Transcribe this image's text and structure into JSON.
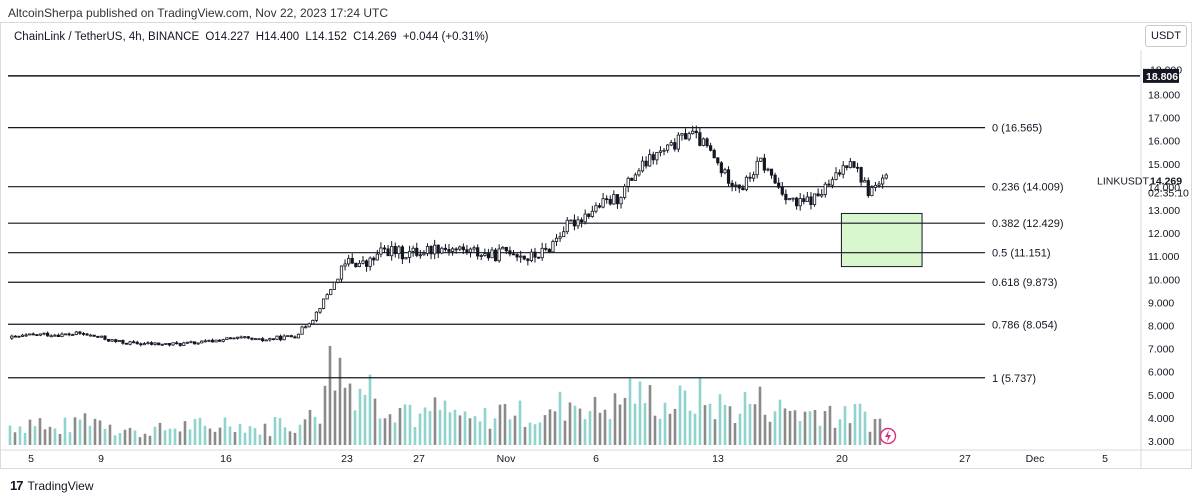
{
  "header": {
    "publisher": "AltcoinSherpa published on TradingView.com, Nov 22, 2023 17:24 UTC"
  },
  "legend": {
    "pair": "ChainLink / TetherUS, 4h, BINANCE",
    "open": "O14.227",
    "high": "H14.400",
    "low": "L14.152",
    "close": "C14.269",
    "change": "+0.044 (+0.31%)"
  },
  "currency_button": "USDT",
  "footer": {
    "logo_mark": "17",
    "brand": "TradingView"
  },
  "colors": {
    "candle": "#131722",
    "volume_up": "#8fd3cc",
    "volume_down": "#8a8a8a",
    "zone_fill": "#d9f7cf",
    "price_tag": "#131722",
    "lightning": "#d8307b"
  },
  "chart_data": {
    "type": "candlestick",
    "y_axis": {
      "ticks": [
        "3.000",
        "4.000",
        "5.000",
        "6.000",
        "7.000",
        "8.000",
        "9.000",
        "10.000",
        "11.000",
        "12.000",
        "13.000",
        "14.000",
        "15.000",
        "16.000",
        "17.000",
        "18.000"
      ],
      "ylim": [
        2.85,
        20.0
      ]
    },
    "x_axis": {
      "ticks": [
        "5",
        "9",
        "16",
        "23",
        "27",
        "Nov",
        "6",
        "13",
        "20",
        "27",
        "Dec",
        "5"
      ]
    },
    "price_series": [
      [
        "Oct 05",
        7.45
      ],
      [
        "Oct 06",
        7.55
      ],
      [
        "Oct 07",
        7.62
      ],
      [
        "Oct 08",
        7.6
      ],
      [
        "Oct 09",
        7.65
      ],
      [
        "Oct 10",
        7.5
      ],
      [
        "Oct 11",
        7.3
      ],
      [
        "Oct 12",
        7.22
      ],
      [
        "Oct 13",
        7.2
      ],
      [
        "Oct 14",
        7.18
      ],
      [
        "Oct 15",
        7.22
      ],
      [
        "Oct 16",
        7.28
      ],
      [
        "Oct 17",
        7.4
      ],
      [
        "Oct 18",
        7.45
      ],
      [
        "Oct 19",
        7.35
      ],
      [
        "Oct 20",
        7.45
      ],
      [
        "Oct 21",
        7.55
      ],
      [
        "Oct 22",
        8.3
      ],
      [
        "Oct 23",
        9.6
      ],
      [
        "Oct 24",
        10.8
      ],
      [
        "Oct 25",
        10.6
      ],
      [
        "Oct 26",
        11.3
      ],
      [
        "Oct 27",
        11.1
      ],
      [
        "Oct 28",
        11.2
      ],
      [
        "Oct 29",
        11.4
      ],
      [
        "Oct 30",
        11.3
      ],
      [
        "Oct 31",
        11.2
      ],
      [
        "Nov 01",
        11.0
      ],
      [
        "Nov 02",
        11.3
      ],
      [
        "Nov 03",
        10.9
      ],
      [
        "Nov 04",
        11.2
      ],
      [
        "Nov 05",
        12.2
      ],
      [
        "Nov 06",
        12.7
      ],
      [
        "Nov 07",
        13.2
      ],
      [
        "Nov 08",
        13.5
      ],
      [
        "Nov 09",
        14.6
      ],
      [
        "Nov 10",
        15.3
      ],
      [
        "Nov 11",
        15.7
      ],
      [
        "Nov 12",
        16.4
      ],
      [
        "Nov 13",
        15.7
      ],
      [
        "Nov 14",
        14.5
      ],
      [
        "Nov 15",
        14.0
      ],
      [
        "Nov 16",
        15.1
      ],
      [
        "Nov 17",
        14.0
      ],
      [
        "Nov 18",
        13.2
      ],
      [
        "Nov 19",
        13.5
      ],
      [
        "Nov 20",
        14.2
      ],
      [
        "Nov 21",
        15.3
      ],
      [
        "Nov 22",
        13.8
      ],
      [
        "Nov 22 17:00",
        14.27
      ]
    ],
    "volume_relative": [
      0.25,
      0.3,
      0.2,
      0.25,
      0.35,
      0.3,
      0.2,
      0.15,
      0.2,
      0.22,
      0.25,
      0.2,
      0.3,
      0.25,
      0.2,
      0.3,
      0.25,
      0.45,
      1.0,
      0.8,
      0.75,
      0.55,
      0.5,
      0.35,
      0.45,
      0.4,
      0.3,
      0.35,
      0.45,
      0.4,
      0.35,
      0.5,
      0.55,
      0.45,
      0.5,
      0.7,
      0.6,
      0.5,
      0.55,
      0.6,
      0.5,
      0.45,
      0.55,
      0.5,
      0.45,
      0.4,
      0.45,
      0.35,
      0.4,
      0.3
    ],
    "fib_levels": [
      {
        "price": 16.565,
        "label": "0 (16.565)"
      },
      {
        "price": 14.009,
        "label": "0.236 (14.009)"
      },
      {
        "price": 12.429,
        "label": "0.382 (12.429)"
      },
      {
        "price": 11.151,
        "label": "0.5 (11.151)"
      },
      {
        "price": 9.873,
        "label": "0.618 (9.873)"
      },
      {
        "price": 8.054,
        "label": "0.786 (8.054)"
      },
      {
        "price": 5.737,
        "label": "1 (5.737)"
      }
    ],
    "horizontal_line": {
      "price": 18.806,
      "label": "18.806"
    },
    "axis_hidden_label": "18.000",
    "zone": {
      "top": 12.85,
      "bottom": 10.55,
      "start": "Nov 19",
      "end": "Nov 23"
    },
    "current": {
      "symbol": "LINKUSDT",
      "price": "14.269",
      "countdown": "02:35:10"
    }
  }
}
